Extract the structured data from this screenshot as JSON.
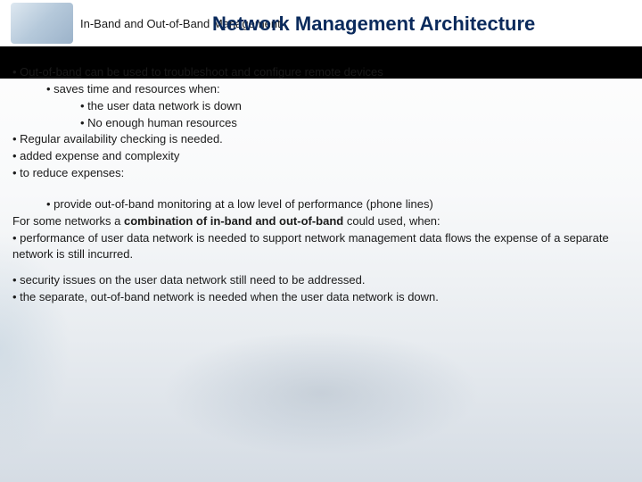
{
  "header": {
    "subtitle": "In-Band and Out-of-Band Management",
    "title": "Network Management Architecture"
  },
  "content": {
    "line1_prefix": "• O",
    "line1_underlined": "ut-of-band",
    "line1_suffix": " can be used to troubleshoot and configure remote devices",
    "line2": "•        saves time and resources when:",
    "line3": "•        the user data network is down",
    "line4": "•        No enough human resources",
    "line5": "• Regular availability checking is needed.",
    "line6": "• added expense and complexity",
    "line7": "• to reduce expenses:",
    "line8": "•        provide out-of-band monitoring at a low level of performance (phone lines)",
    "line9_prefix": "For some networks a ",
    "line9_bold": "combination of in-band and out-of-band",
    "line9_suffix": " could used, when:",
    "line10": "• performance of user data network is needed to support network management data flows the expense of a separate network is still incurred.",
    "line11": "• security issues on the user data network still need to be addressed.",
    "line12": "• the separate, out-of-band network is needed when the user data network is down."
  },
  "colors": {
    "title_color": "#0a2a5c",
    "text_color": "#1a1a1a",
    "bar_color": "#000000",
    "bg_top": "#ffffff",
    "bg_bottom": "#d5dce4"
  }
}
